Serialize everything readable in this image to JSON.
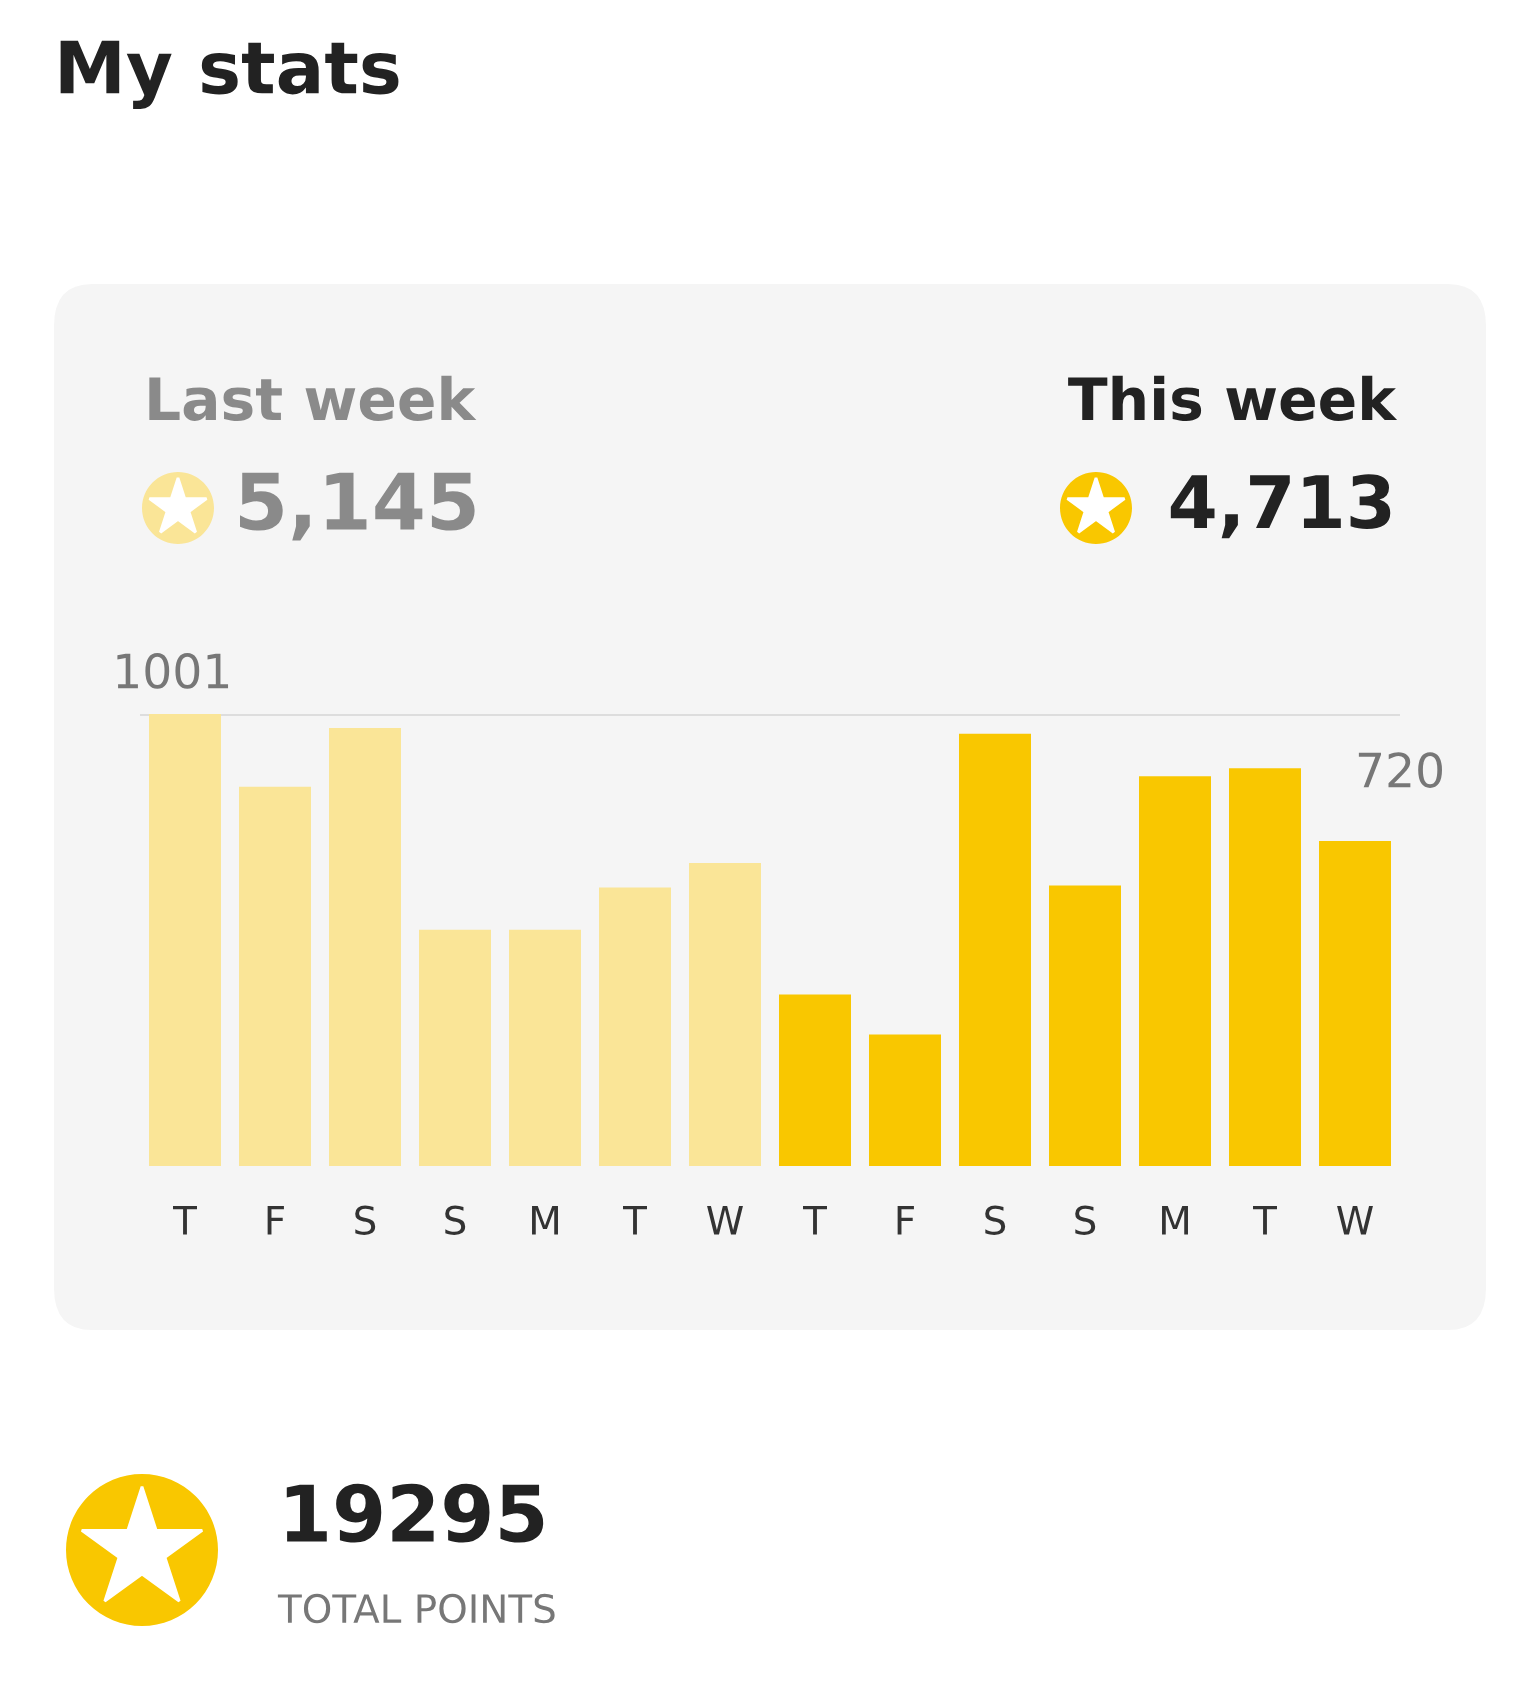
{
  "chart_data": {
    "type": "bar",
    "title": "My stats",
    "categories": [
      "T",
      "F",
      "S",
      "S",
      "M",
      "T",
      "W",
      "T",
      "F",
      "S",
      "S",
      "M",
      "T",
      "W"
    ],
    "values": [
      1001,
      840,
      970,
      523,
      523,
      617,
      671,
      380,
      291,
      957,
      621,
      863,
      881,
      720
    ],
    "colors": [
      "#fae597",
      "#fae597",
      "#fae597",
      "#fae597",
      "#fae597",
      "#fae597",
      "#fae597",
      "#f9c700",
      "#f9c700",
      "#f9c700",
      "#f9c700",
      "#f9c700",
      "#f9c700",
      "#f9c700"
    ],
    "value_labels": [
      null,
      null,
      null,
      null,
      null,
      null,
      null,
      null,
      null,
      null,
      null,
      null,
      null,
      "720"
    ],
    "ylim": [
      0,
      1001
    ],
    "ref_lines": [
      {
        "axis": "y",
        "value": 1001,
        "label": "1001",
        "color": "#dddddd"
      }
    ],
    "tick_labels": "x",
    "grid": false,
    "legend": false,
    "annotations": [
      "Last week",
      "5,145",
      "This week",
      "4,713",
      "19295",
      "TOTAL POINTS"
    ]
  }
}
